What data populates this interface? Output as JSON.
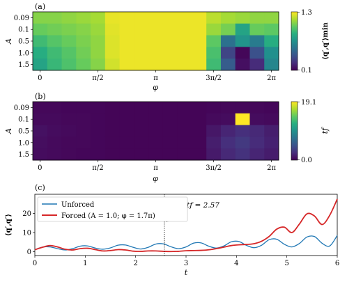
{
  "chart_data": [
    {
      "type": "heatmap",
      "panel_label": "(a)",
      "xlabel": "φ",
      "ylabel": "A",
      "x_tick_labels": [
        "0",
        "π/2",
        "π",
        "3π/2",
        "2π"
      ],
      "x_tick_values": [
        0,
        1.5708,
        3.1416,
        4.7124,
        6.2832
      ],
      "xlim": [
        -0.196,
        6.479
      ],
      "y_tick_labels": [
        "0.09",
        "0.1",
        "0.5",
        "1.0",
        "1.5"
      ],
      "colorbar_label": "⟨q′,q′⟩min",
      "colorbar_ticks": [
        "1.3",
        "0.1"
      ],
      "vmin": 0.1,
      "vmax": 1.3,
      "colormap": "viridis",
      "n_columns": 17,
      "values": [
        [
          1.08,
          1.08,
          1.1,
          1.12,
          1.14,
          1.26,
          1.27,
          1.27,
          1.27,
          1.27,
          1.27,
          1.27,
          1.18,
          1.14,
          1.12,
          1.1,
          1.1
        ],
        [
          1.02,
          1.04,
          1.06,
          1.08,
          1.12,
          1.25,
          1.27,
          1.27,
          1.27,
          1.27,
          1.27,
          1.27,
          1.12,
          1.05,
          0.8,
          1.02,
          1.0
        ],
        [
          0.92,
          0.98,
          1.02,
          1.06,
          1.1,
          1.24,
          1.27,
          1.27,
          1.27,
          1.27,
          1.27,
          1.27,
          1.0,
          0.55,
          0.72,
          0.6,
          0.85
        ],
        [
          0.85,
          0.92,
          0.98,
          1.04,
          1.1,
          1.24,
          1.27,
          1.27,
          1.27,
          1.27,
          1.27,
          1.27,
          0.95,
          0.35,
          0.12,
          0.4,
          0.7
        ],
        [
          0.8,
          0.9,
          0.96,
          1.02,
          1.08,
          1.22,
          1.27,
          1.27,
          1.27,
          1.27,
          1.27,
          1.27,
          0.92,
          0.45,
          0.15,
          0.25,
          0.65
        ]
      ]
    },
    {
      "type": "heatmap",
      "panel_label": "(b)",
      "xlabel": "φ",
      "ylabel": "A",
      "x_tick_labels": [
        "0",
        "π/2",
        "π",
        "3π/2",
        "2π"
      ],
      "x_tick_values": [
        0,
        1.5708,
        3.1416,
        4.7124,
        6.2832
      ],
      "xlim": [
        -0.196,
        6.479
      ],
      "y_tick_labels": [
        "0.09",
        "0.1",
        "0.5",
        "1.0",
        "1.5"
      ],
      "colorbar_label": "tf",
      "colorbar_ticks": [
        "19.1",
        "0.0"
      ],
      "vmin": 0.0,
      "vmax": 19.1,
      "colormap": "viridis",
      "n_columns": 17,
      "values": [
        [
          0.4,
          0.4,
          0.3,
          0.3,
          0.3,
          0.2,
          0.2,
          0.2,
          0.2,
          0.2,
          0.2,
          0.2,
          0.3,
          0.4,
          0.4,
          0.4,
          0.3
        ],
        [
          0.5,
          0.5,
          0.4,
          0.4,
          0.3,
          0.2,
          0.2,
          0.2,
          0.2,
          0.2,
          0.2,
          0.2,
          0.5,
          0.6,
          19.1,
          0.6,
          0.5
        ],
        [
          0.9,
          0.6,
          0.5,
          0.4,
          0.3,
          0.2,
          0.2,
          0.2,
          0.2,
          0.2,
          0.2,
          0.2,
          1.2,
          2.0,
          2.6,
          2.2,
          1.6
        ],
        [
          0.7,
          0.5,
          0.4,
          0.4,
          0.3,
          0.2,
          0.2,
          0.2,
          0.2,
          0.2,
          0.2,
          0.2,
          1.6,
          2.6,
          3.2,
          2.4,
          1.8
        ],
        [
          0.6,
          0.5,
          0.4,
          0.3,
          0.3,
          0.2,
          0.2,
          0.2,
          0.2,
          0.2,
          0.2,
          0.2,
          1.4,
          2.2,
          2.8,
          2.0,
          1.5
        ]
      ]
    },
    {
      "type": "line",
      "panel_label": "(c)",
      "xlabel": "t",
      "ylabel": "⟨q′,q′⟩",
      "xlim": [
        0,
        6
      ],
      "ylim": [
        -2,
        30
      ],
      "x_ticks": [
        0,
        1,
        2,
        3,
        4,
        5,
        6
      ],
      "y_ticks": [
        0,
        10,
        20
      ],
      "legend_position": "top-left",
      "vline": {
        "x": 2.57
      },
      "annotation": {
        "text": "tf = 2.57",
        "x": 2.57,
        "y": 15
      },
      "series": [
        {
          "name": "Unforced",
          "color": "#1f77b4",
          "x": [
            0,
            0.15,
            0.3,
            0.45,
            0.6,
            0.75,
            0.9,
            1.05,
            1.2,
            1.35,
            1.5,
            1.65,
            1.8,
            1.95,
            2.1,
            2.25,
            2.4,
            2.55,
            2.7,
            2.85,
            3.0,
            3.15,
            3.3,
            3.45,
            3.6,
            3.75,
            3.9,
            4.05,
            4.2,
            4.35,
            4.5,
            4.65,
            4.8,
            4.95,
            5.1,
            5.25,
            5.4,
            5.55,
            5.7,
            5.85,
            6.0
          ],
          "y": [
            1.0,
            2.4,
            2.5,
            1.6,
            0.9,
            1.6,
            2.9,
            3.0,
            1.9,
            1.3,
            2.0,
            3.4,
            3.5,
            2.3,
            1.4,
            2.3,
            4.0,
            4.1,
            2.6,
            1.6,
            2.5,
            4.5,
            4.6,
            2.9,
            1.9,
            3.0,
            5.2,
            5.3,
            3.3,
            2.1,
            3.4,
            6.3,
            6.5,
            3.9,
            2.5,
            4.3,
            7.7,
            7.9,
            4.4,
            3.0,
            8.5
          ]
        },
        {
          "name": "Forced (A = 1.0; φ = 1.7π)",
          "color": "#d62728",
          "x": [
            0,
            0.15,
            0.3,
            0.45,
            0.6,
            0.75,
            0.9,
            1.05,
            1.2,
            1.35,
            1.5,
            1.65,
            1.8,
            1.95,
            2.1,
            2.25,
            2.4,
            2.55,
            2.7,
            2.85,
            3.0,
            3.15,
            3.3,
            3.45,
            3.6,
            3.75,
            3.9,
            4.05,
            4.2,
            4.35,
            4.5,
            4.65,
            4.8,
            4.95,
            5.1,
            5.25,
            5.4,
            5.55,
            5.7,
            5.85,
            6.0
          ],
          "y": [
            1.0,
            2.3,
            3.2,
            2.5,
            1.3,
            0.9,
            1.6,
            1.8,
            1.1,
            0.4,
            0.6,
            1.1,
            0.9,
            0.3,
            0.2,
            0.4,
            0.4,
            0.2,
            0.1,
            0.2,
            0.5,
            0.6,
            0.7,
            1.0,
            1.6,
            2.4,
            3.2,
            3.6,
            3.8,
            4.2,
            5.5,
            8.0,
            11.8,
            12.8,
            10.0,
            14.5,
            19.8,
            18.6,
            14.2,
            19.0,
            27.5
          ]
        }
      ]
    }
  ]
}
